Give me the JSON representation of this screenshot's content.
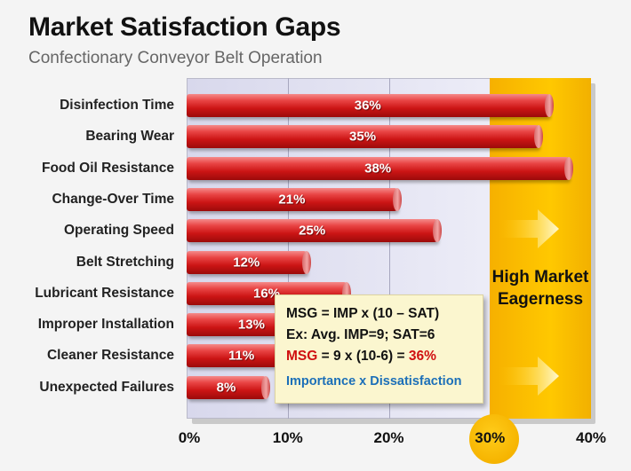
{
  "title": "Market Satisfaction Gaps",
  "subtitle": "Confectionary Conveyor Belt Operation",
  "highlight_label": "High Market Eagerness",
  "formula": {
    "line1": "MSG = IMP x (10 – SAT)",
    "line2": "Ex: Avg. IMP=9;  SAT=6",
    "line3_prefix": "MSG",
    "line3_mid": " = 9 x (10-6) = ",
    "line3_result": "36%",
    "caption": "Importance x Dissatisfaction"
  },
  "colors": {
    "bar": "#cc1515",
    "highlight": "#ffc000",
    "formula_bg": "#fbf6cf",
    "formula_red": "#d01010",
    "formula_blue": "#1c6fb8"
  },
  "chart_data": {
    "type": "bar",
    "orientation": "horizontal",
    "title": "Market Satisfaction Gaps",
    "subtitle": "Confectionary Conveyor Belt Operation",
    "categories": [
      "Disinfection Time",
      "Bearing Wear",
      "Food Oil Resistance",
      "Change-Over Time",
      "Operating Speed",
      "Belt Stretching",
      "Lubricant Resistance",
      "Improper Installation",
      "Cleaner Resistance",
      "Unexpected Failures"
    ],
    "values": [
      36,
      35,
      38,
      21,
      25,
      12,
      16,
      13,
      11,
      8
    ],
    "value_labels": [
      "36%",
      "35%",
      "38%",
      "21%",
      "25%",
      "12%",
      "16%",
      "13%",
      "11%",
      "8%"
    ],
    "x_ticks": [
      "0%",
      "10%",
      "20%",
      "30%",
      "40%"
    ],
    "xlim": [
      0,
      40
    ],
    "highlight_region": [
      30,
      40
    ],
    "grid": true
  }
}
